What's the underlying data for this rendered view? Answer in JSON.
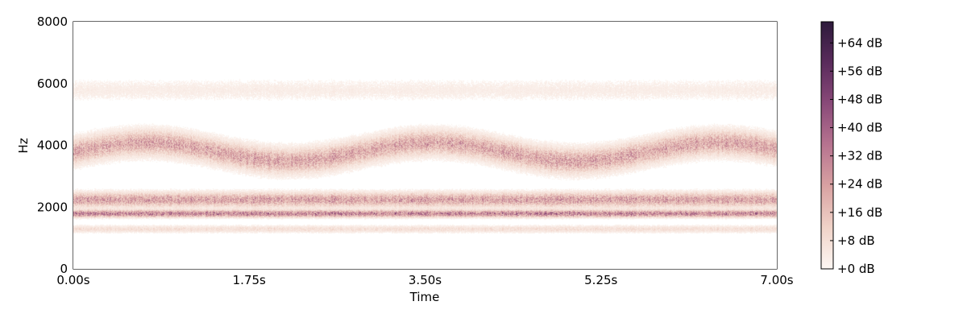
{
  "chart_data": {
    "type": "heatmap",
    "title": "",
    "xlabel": "Time",
    "ylabel": "Hz",
    "xlim": [
      0,
      7.0
    ],
    "ylim": [
      0,
      8000
    ],
    "x_ticks": [
      0,
      1.75,
      3.5,
      5.25,
      7.0
    ],
    "x_tick_labels": [
      "0.00s",
      "1.75s",
      "3.50s",
      "5.25s",
      "7.00s"
    ],
    "y_ticks": [
      0,
      2000,
      4000,
      6000,
      8000
    ],
    "y_tick_labels": [
      "0",
      "2000",
      "4000",
      "6000",
      "8000"
    ],
    "colorbar": {
      "min_db": 0,
      "max_db": 70,
      "ticks": [
        0,
        8,
        16,
        24,
        32,
        40,
        48,
        56,
        64
      ],
      "tick_labels": [
        "+0 dB",
        "+8 dB",
        "+16 dB",
        "+24 dB",
        "+32 dB",
        "+40 dB",
        "+48 dB",
        "+56 dB",
        "+64 dB"
      ],
      "colors": [
        "#fdf7f3",
        "#f0d3c8",
        "#d9a2a2",
        "#b77490",
        "#8a4a79",
        "#5a2b5c",
        "#2d1a3b"
      ]
    },
    "bands": [
      {
        "center_hz": 1800,
        "width_hz": 200,
        "level_db": 40
      },
      {
        "center_hz": 2250,
        "width_hz": 400,
        "level_db": 30
      },
      {
        "center_hz": 3800,
        "width_hz": 700,
        "level_db": 28
      },
      {
        "center_hz": 1300,
        "width_hz": 200,
        "level_db": 10
      },
      {
        "center_hz": 5800,
        "width_hz": 600,
        "level_db": 4
      }
    ],
    "grid": false
  }
}
